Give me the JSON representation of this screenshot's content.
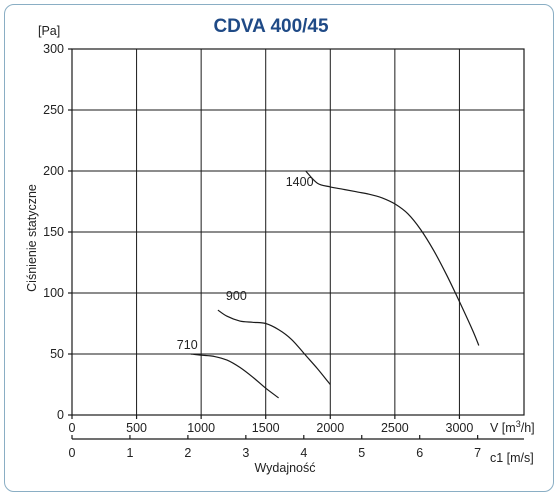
{
  "chart_data": {
    "type": "line",
    "title": "CDVA 400/45",
    "ylabel": "Ciśnienie statyczne",
    "yunit": "[Pa]",
    "xlabel": "Wydajność",
    "xunit": "V [m³/h]",
    "x2unit": "c1 [m/s]",
    "xlim": [
      0,
      3500
    ],
    "ylim": [
      0,
      300
    ],
    "x_ticks": [
      0,
      500,
      1000,
      1500,
      2000,
      2500,
      3000
    ],
    "y_ticks": [
      0,
      50,
      100,
      150,
      200,
      250,
      300
    ],
    "x2_ticks": [
      0,
      1,
      2,
      3,
      4,
      5,
      6,
      7
    ],
    "x2lim": [
      0,
      7.8
    ],
    "grid": true,
    "series": [
      {
        "name": "710",
        "points": [
          [
            920,
            50
          ],
          [
            1000,
            49
          ],
          [
            1100,
            48
          ],
          [
            1200,
            45
          ],
          [
            1300,
            39
          ],
          [
            1400,
            31
          ],
          [
            1500,
            22
          ],
          [
            1600,
            14
          ]
        ]
      },
      {
        "name": "900",
        "points": [
          [
            1130,
            86
          ],
          [
            1200,
            81
          ],
          [
            1300,
            77
          ],
          [
            1400,
            76
          ],
          [
            1500,
            75
          ],
          [
            1600,
            70
          ],
          [
            1700,
            62
          ],
          [
            1800,
            50
          ],
          [
            1900,
            38
          ],
          [
            2000,
            25
          ]
        ]
      },
      {
        "name": "1400",
        "points": [
          [
            1810,
            200
          ],
          [
            1900,
            190
          ],
          [
            2000,
            187
          ],
          [
            2100,
            185
          ],
          [
            2200,
            183
          ],
          [
            2300,
            181
          ],
          [
            2400,
            178
          ],
          [
            2500,
            173
          ],
          [
            2600,
            165
          ],
          [
            2700,
            152
          ],
          [
            2800,
            135
          ],
          [
            2900,
            115
          ],
          [
            3000,
            93
          ],
          [
            3100,
            70
          ],
          [
            3150,
            57
          ]
        ]
      }
    ]
  }
}
